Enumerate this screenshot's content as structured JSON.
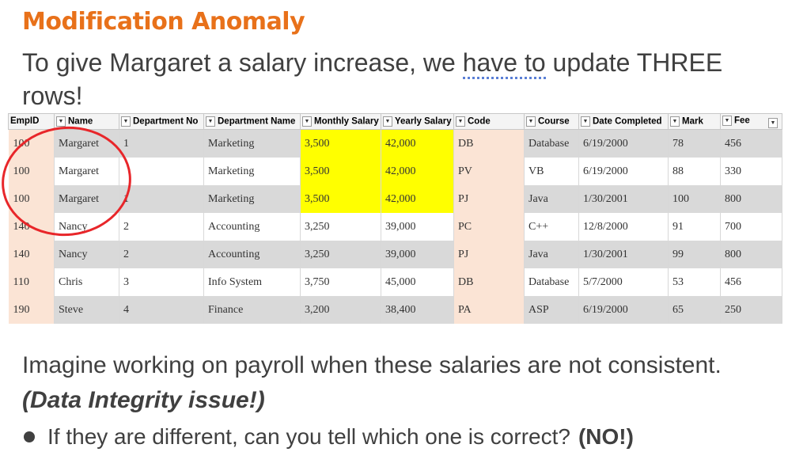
{
  "title": "Modification Anomaly",
  "intro": {
    "before": "To give Margaret a salary increase, we ",
    "underlined": "have to",
    "after": " update THREE rows!"
  },
  "table": {
    "headers": [
      "EmpID",
      "Name",
      "Department No",
      "Department Name",
      "Monthly Salary",
      "Yearly Salary",
      "Code",
      "Course",
      "Date Completed",
      "Mark",
      "Fee"
    ],
    "rows": [
      [
        "100",
        "Margaret",
        "1",
        "Marketing",
        "3,500",
        "42,000",
        "DB",
        "Database",
        "6/19/2000",
        "78",
        "456"
      ],
      [
        "100",
        "Margaret",
        "",
        "Marketing",
        "3,500",
        "42,000",
        "PV",
        "VB",
        "6/19/2000",
        "88",
        "330"
      ],
      [
        "100",
        "Margaret",
        "1",
        "Marketing",
        "3,500",
        "42,000",
        "PJ",
        "Java",
        "1/30/2001",
        "100",
        "800"
      ],
      [
        "140",
        "Nancy",
        "2",
        "Accounting",
        "3,250",
        "39,000",
        "PC",
        "C++",
        "12/8/2000",
        "91",
        "700"
      ],
      [
        "140",
        "Nancy",
        "2",
        "Accounting",
        "3,250",
        "39,000",
        "PJ",
        "Java",
        "1/30/2001",
        "99",
        "800"
      ],
      [
        "110",
        "Chris",
        "3",
        "Info System",
        "3,750",
        "45,000",
        "DB",
        "Database",
        "5/7/2000",
        "53",
        "456"
      ],
      [
        "190",
        "Steve",
        "4",
        "Finance",
        "3,200",
        "38,400",
        "PA",
        "ASP",
        "6/19/2000",
        "65",
        "250"
      ]
    ]
  },
  "colors": {
    "title": "#e8711a",
    "highlight": "#ffff00",
    "code_fill": "#fbe4d5",
    "row_shade": "#d9d9d9",
    "circle": "#e8262a"
  },
  "dropdown_icon": "chevron-down-icon",
  "bottom": {
    "line1": "Imagine working on payroll when these salaries are not consistent. ",
    "emphasis": "(Data Integrity issue!)"
  },
  "bullet": {
    "text": "If they are different, can you tell which one is correct?",
    "answer": "(NO!)"
  }
}
